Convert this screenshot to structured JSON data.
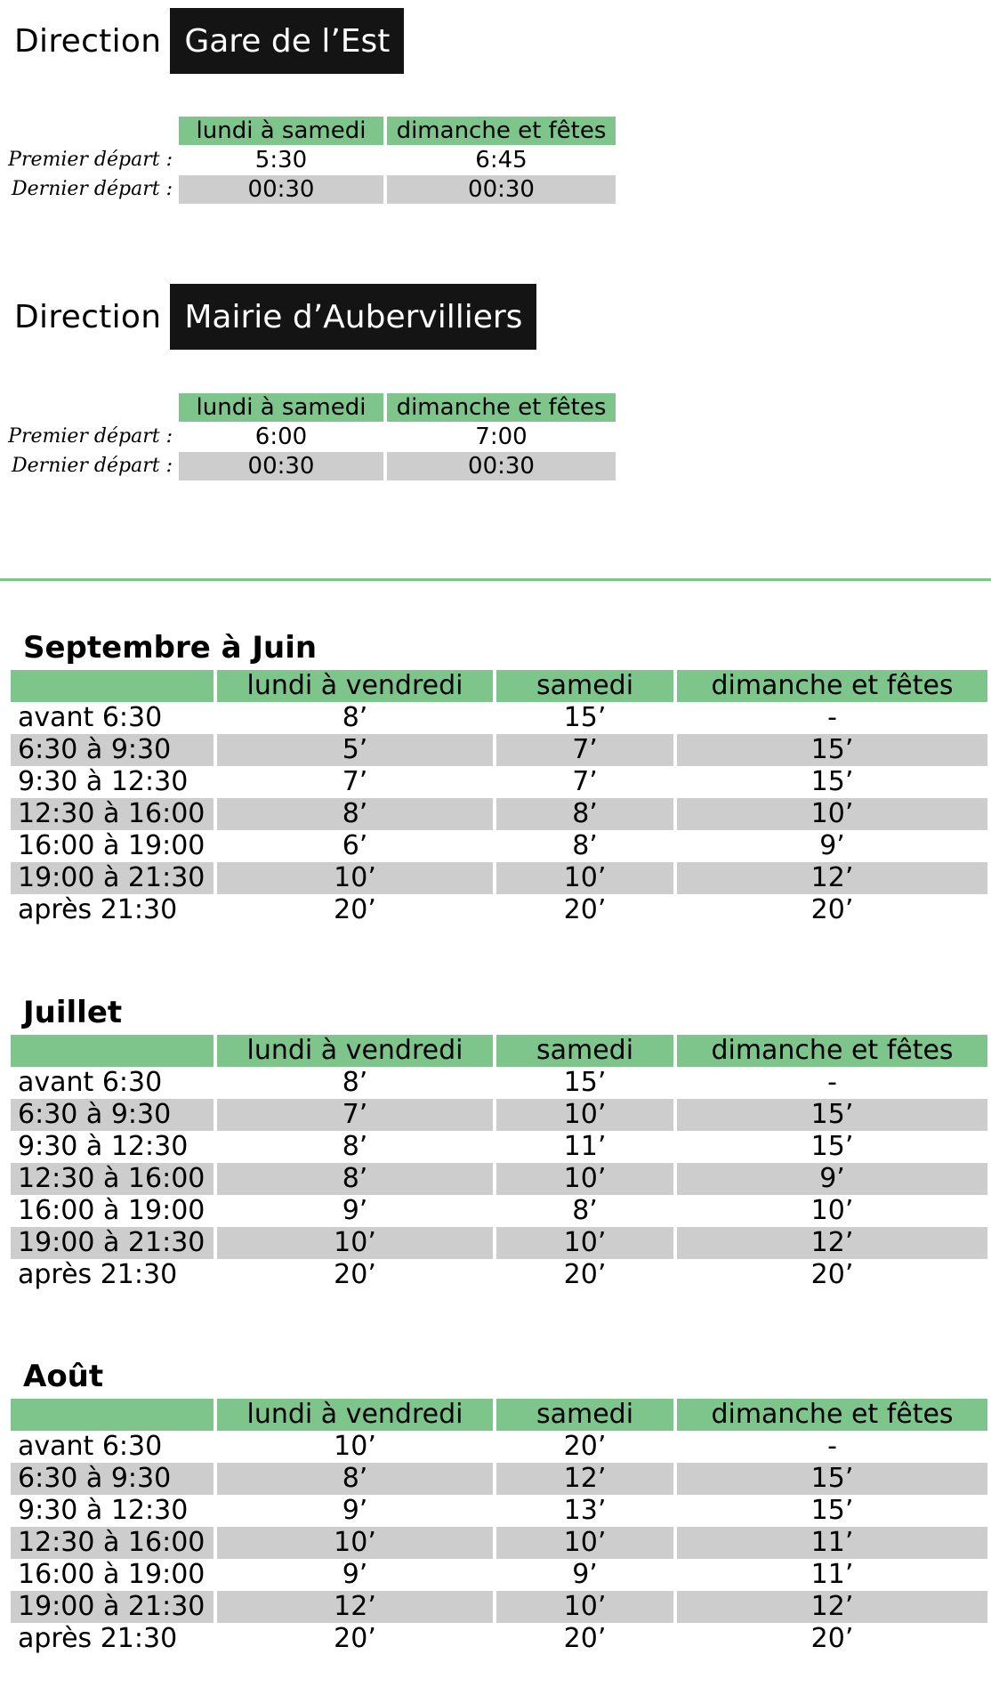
{
  "directions": [
    {
      "label": "Direction",
      "destination": "Gare de l’Est",
      "headers": [
        "lundi à samedi",
        "dimanche et fêtes"
      ],
      "rows": [
        {
          "label": "Premier départ :",
          "values": [
            "5:30",
            "6:45"
          ]
        },
        {
          "label": "Dernier départ :",
          "values": [
            "00:30",
            "00:30"
          ]
        }
      ]
    },
    {
      "label": "Direction",
      "destination": "Mairie d’Aubervilliers",
      "headers": [
        "lundi à samedi",
        "dimanche et fêtes"
      ],
      "rows": [
        {
          "label": "Premier départ :",
          "values": [
            "6:00",
            "7:00"
          ]
        },
        {
          "label": "Dernier départ :",
          "values": [
            "00:30",
            "00:30"
          ]
        }
      ]
    }
  ],
  "frequencies": [
    {
      "title": "Septembre à Juin",
      "headers": [
        "",
        "lundi à vendredi",
        "samedi",
        "dimanche et fêtes"
      ],
      "rows": [
        [
          "avant 6:30",
          "8’",
          "15’",
          "-"
        ],
        [
          "6:30 à 9:30",
          "5’",
          "7’",
          "15’"
        ],
        [
          "9:30 à 12:30",
          "7’",
          "7’",
          "15’"
        ],
        [
          "12:30 à 16:00",
          "8’",
          "8’",
          "10’"
        ],
        [
          "16:00 à 19:00",
          "6’",
          "8’",
          "9’"
        ],
        [
          "19:00 à 21:30",
          "10’",
          "10’",
          "12’"
        ],
        [
          "après 21:30",
          "20’",
          "20’",
          "20’"
        ]
      ]
    },
    {
      "title": "Juillet",
      "headers": [
        "",
        "lundi à vendredi",
        "samedi",
        "dimanche et fêtes"
      ],
      "rows": [
        [
          "avant 6:30",
          "8’",
          "15’",
          "-"
        ],
        [
          "6:30 à 9:30",
          "7’",
          "10’",
          "15’"
        ],
        [
          "9:30 à 12:30",
          "8’",
          "11’",
          "15’"
        ],
        [
          "12:30 à 16:00",
          "8’",
          "10’",
          "9’"
        ],
        [
          "16:00 à 19:00",
          "9’",
          "8’",
          "10’"
        ],
        [
          "19:00 à 21:30",
          "10’",
          "10’",
          "12’"
        ],
        [
          "après 21:30",
          "20’",
          "20’",
          "20’"
        ]
      ]
    },
    {
      "title": "Août",
      "headers": [
        "",
        "lundi à vendredi",
        "samedi",
        "dimanche et fêtes"
      ],
      "rows": [
        [
          "avant 6:30",
          "10’",
          "20’",
          "-"
        ],
        [
          "6:30 à 9:30",
          "8’",
          "12’",
          "15’"
        ],
        [
          "9:30 à 12:30",
          "9’",
          "13’",
          "15’"
        ],
        [
          "12:30 à 16:00",
          "10’",
          "10’",
          "11’"
        ],
        [
          "16:00 à 19:00",
          "9’",
          "9’",
          "11’"
        ],
        [
          "19:00 à 21:30",
          "12’",
          "10’",
          "12’"
        ],
        [
          "après 21:30",
          "20’",
          "20’",
          "20’"
        ]
      ]
    }
  ],
  "colors": {
    "accent_green": "#7ec58b",
    "row_grey": "#cdcdcd",
    "title_box": "#141414"
  }
}
